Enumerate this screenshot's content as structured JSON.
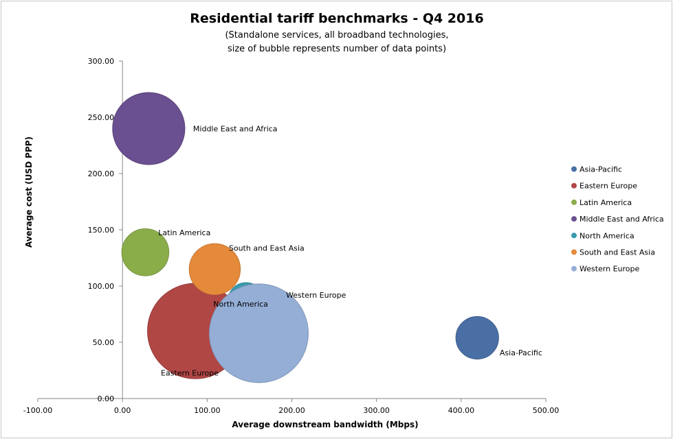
{
  "chart_data": {
    "type": "bubble",
    "title": "Residential tariff benchmarks - Q4 2016",
    "subtitle_lines": [
      "(Standalone services, all broadband technologies,",
      "size of bubble represents number of data points)"
    ],
    "xlabel": "Average downstream bandwidth (Mbps)",
    "ylabel": "Average cost (USD PPP)",
    "xlim": [
      -100,
      500
    ],
    "ylim": [
      0,
      300
    ],
    "x_ticks": [
      -100,
      0,
      100,
      200,
      300,
      400,
      500
    ],
    "y_ticks": [
      0,
      50,
      100,
      150,
      200,
      250,
      300
    ],
    "x_tick_labels": [
      "-100.00",
      "0.00",
      "100.00",
      "200.00",
      "300.00",
      "400.00",
      "500.00"
    ],
    "y_tick_labels": [
      "0.00",
      "50.00",
      "100.00",
      "150.00",
      "200.00",
      "250.00",
      "300.00"
    ],
    "grid": false,
    "legend_position": "right",
    "series": [
      {
        "name": "Asia-Pacific",
        "x": 419,
        "y": 54,
        "size": 28,
        "color": "#4a6fa5",
        "label_pos": "below-right"
      },
      {
        "name": "Eastern Europe",
        "x": 86,
        "y": 60,
        "size": 140,
        "color": "#b04745",
        "label_pos": "below-left"
      },
      {
        "name": "Latin America",
        "x": 27,
        "y": 130,
        "size": 34,
        "color": "#8aad4a",
        "label_pos": "above-right"
      },
      {
        "name": "Middle East and Africa",
        "x": 31,
        "y": 240,
        "size": 80,
        "color": "#6a5090",
        "label_pos": "right"
      },
      {
        "name": "North America",
        "x": 146,
        "y": 87,
        "size": 20,
        "color": "#3a9aad",
        "label_pos": "inside"
      },
      {
        "name": "South and East Asia",
        "x": 109,
        "y": 115,
        "size": 40,
        "color": "#e58a3a",
        "label_pos": "above-right"
      },
      {
        "name": "Western Europe",
        "x": 161,
        "y": 58,
        "size": 150,
        "color": "#94aed6",
        "label_pos": "above-right"
      }
    ]
  }
}
